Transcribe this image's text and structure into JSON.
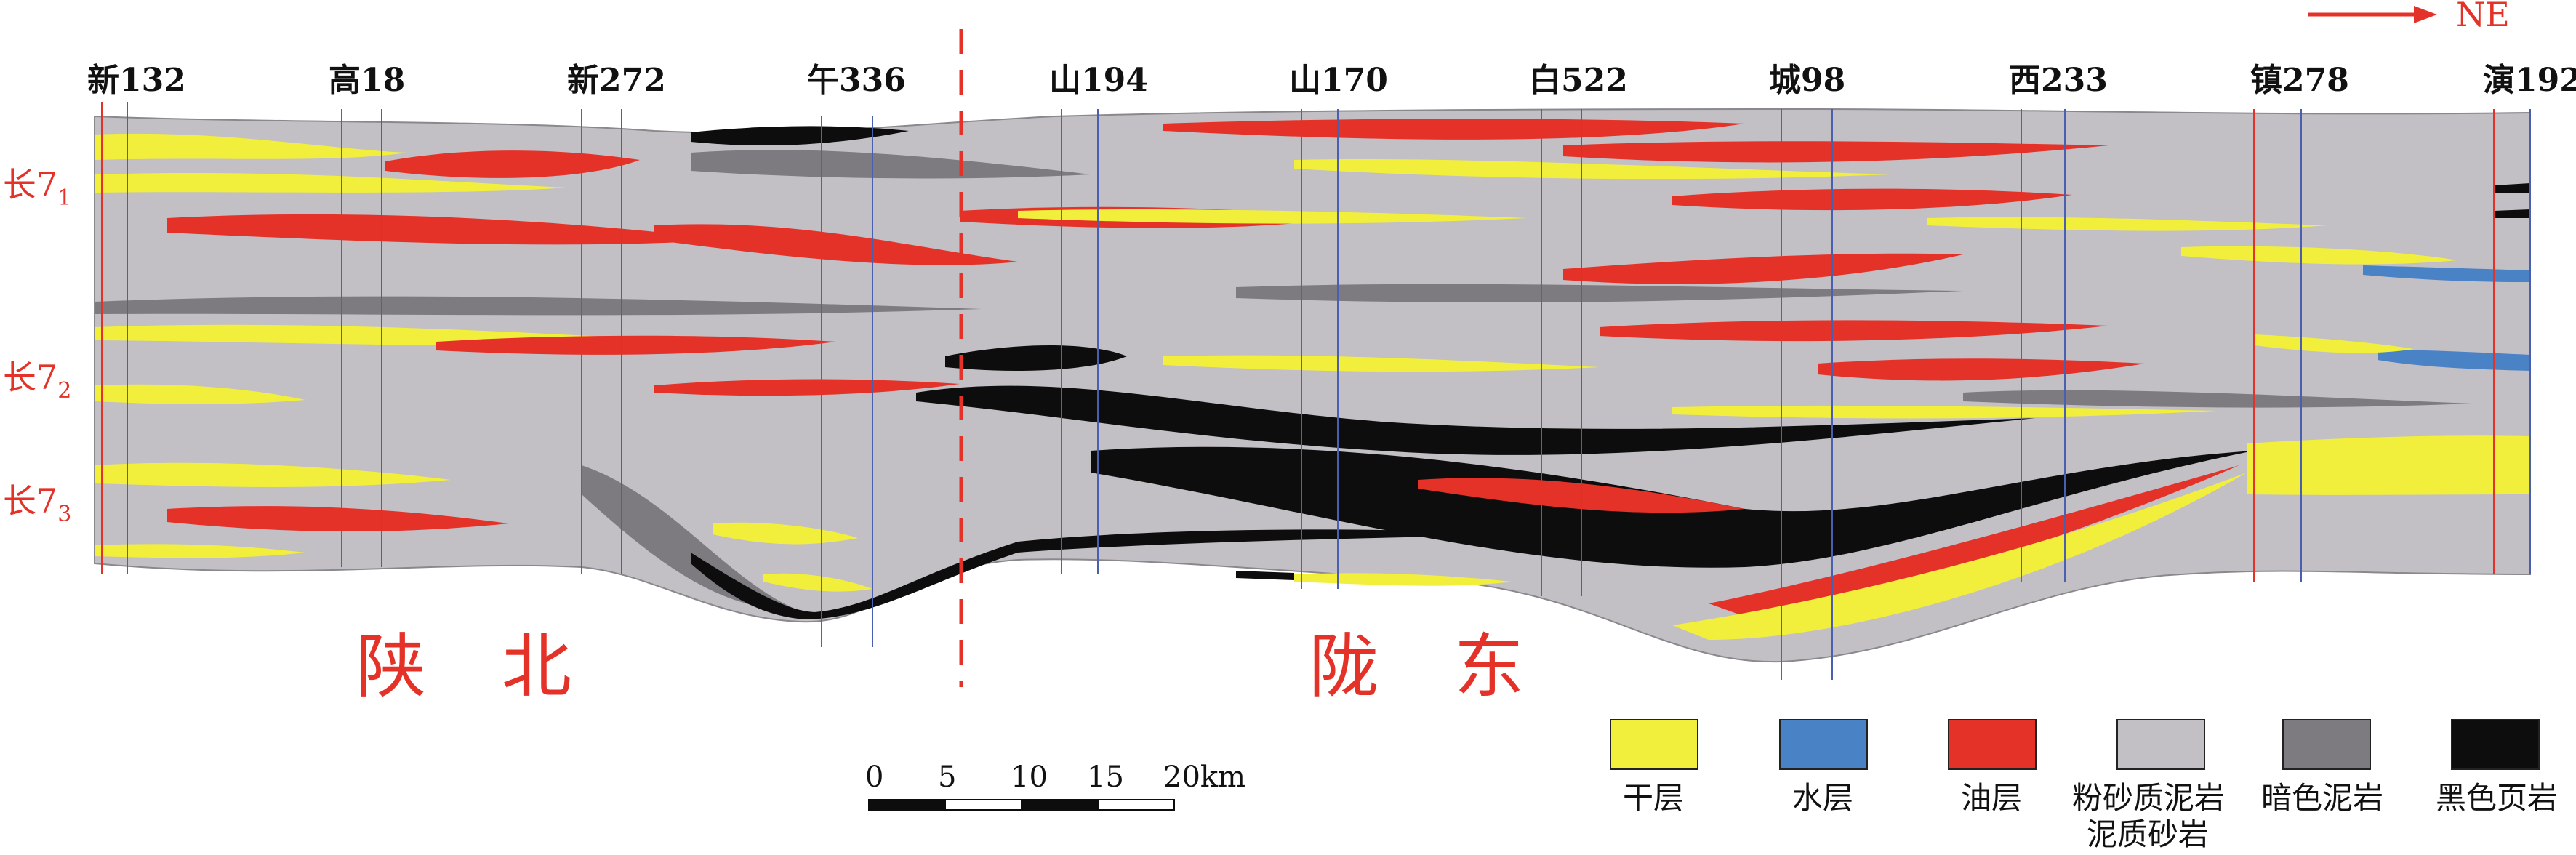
{
  "direction": {
    "label": "NE",
    "color": "#e53228"
  },
  "wells": [
    "新132",
    "高18",
    "新272",
    "午336",
    "山194",
    "山170",
    "白522",
    "城98",
    "西233",
    "镇278",
    "演192"
  ],
  "layers": [
    {
      "main": "长7",
      "sub": "1"
    },
    {
      "main": "长7",
      "sub": "2"
    },
    {
      "main": "长7",
      "sub": "3"
    }
  ],
  "regions": [
    "陕　北",
    "陇　东"
  ],
  "scale_bar": {
    "ticks": [
      "0",
      "5",
      "10",
      "15",
      "20km"
    ]
  },
  "legend": [
    {
      "label": "干层",
      "color": "#f2ef3c"
    },
    {
      "label": "水层",
      "color": "#4a82c6"
    },
    {
      "label": "油层",
      "color": "#e53228"
    },
    {
      "label": "粉砂质泥岩",
      "label2": "泥质砂岩",
      "color": "#c2bfc5"
    },
    {
      "label": "暗色泥岩",
      "color": "#7d7b80"
    },
    {
      "label": "黑色页岩",
      "color": "#0d0d0d"
    }
  ]
}
